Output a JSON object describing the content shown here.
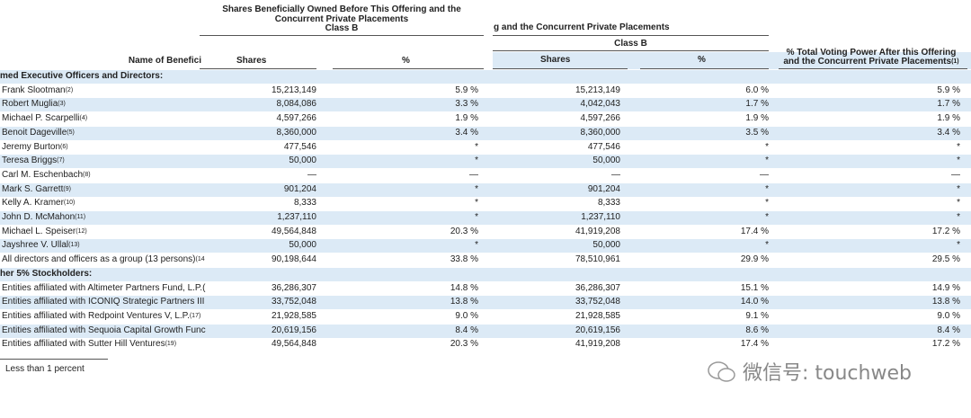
{
  "header": {
    "group1": [
      "Shares Beneficially Owned Before This Offering and the",
      "Concurrent Private Placements",
      "Class B"
    ],
    "group2": [
      "g and the Concurrent Private Placements",
      "Class B"
    ],
    "voting": {
      "lines": [
        "% Total Voting Power After this Offering",
        "and the Concurrent Private Placements"
      ],
      "note": "(1)"
    },
    "columns": [
      "Name of Benefici",
      "Shares",
      "%",
      "Shares",
      "%"
    ]
  },
  "table": {
    "sections": [
      {
        "title": "med Executive Officers and Directors:",
        "rows": [
          {
            "name": "Frank Slootman",
            "note": "(2)",
            "cells": [
              "15,213,149",
              "5.9 %",
              "15,213,149",
              "6.0 %",
              "5.9 %"
            ]
          },
          {
            "name": "Robert Muglia",
            "note": "(3)",
            "cells": [
              "8,084,086",
              "3.3 %",
              "4,042,043",
              "1.7 %",
              "1.7 %"
            ]
          },
          {
            "name": "Michael P. Scarpelli",
            "note": "(4)",
            "cells": [
              "4,597,266",
              "1.9 %",
              "4,597,266",
              "1.9 %",
              "1.9 %"
            ]
          },
          {
            "name": "Benoit Dageville",
            "note": "(5)",
            "cells": [
              "8,360,000",
              "3.4 %",
              "8,360,000",
              "3.5 %",
              "3.4 %"
            ]
          },
          {
            "name": "Jeremy Burton",
            "note": "(6)",
            "cells": [
              "477,546",
              "*",
              "477,546",
              "*",
              "*"
            ]
          },
          {
            "name": "Teresa Briggs",
            "note": "(7)",
            "cells": [
              "50,000",
              "*",
              "50,000",
              "*",
              "*"
            ]
          },
          {
            "name": "Carl M. Eschenbach",
            "note": "(8)",
            "cells": [
              "—",
              "—",
              "—",
              "—",
              "—"
            ]
          },
          {
            "name": "Mark S. Garrett",
            "note": "(9)",
            "cells": [
              "901,204",
              "*",
              "901,204",
              "*",
              "*"
            ]
          },
          {
            "name": "Kelly A. Kramer",
            "note": "(10)",
            "cells": [
              "8,333",
              "*",
              "8,333",
              "*",
              "*"
            ]
          },
          {
            "name": "John D. McMahon",
            "note": "(11)",
            "cells": [
              "1,237,110",
              "*",
              "1,237,110",
              "*",
              "*"
            ]
          },
          {
            "name": "Michael L. Speiser",
            "note": "(12)",
            "cells": [
              "49,564,848",
              "20.3 %",
              "41,919,208",
              "17.4 %",
              "17.2 %"
            ]
          },
          {
            "name": "Jayshree V. Ullal",
            "note": "(13)",
            "cells": [
              "50,000",
              "*",
              "50,000",
              "*",
              "*"
            ]
          },
          {
            "name": "All directors and officers as a group (13 persons)",
            "note": "(14",
            "cells": [
              "90,198,644",
              "33.8 %",
              "78,510,961",
              "29.9 %",
              "29.5 %"
            ]
          }
        ]
      },
      {
        "title": "her 5% Stockholders:",
        "rows": [
          {
            "name": "Entities affiliated with Altimeter Partners Fund, L.P.(",
            "cells": [
              "36,286,307",
              "14.8 %",
              "36,286,307",
              "15.1 %",
              "14.9 %"
            ]
          },
          {
            "name": "Entities affiliated with ICONIQ Strategic Partners III",
            "cells": [
              "33,752,048",
              "13.8 %",
              "33,752,048",
              "14.0 %",
              "13.8 %"
            ]
          },
          {
            "name": "Entities affiliated with Redpoint Ventures V, L.P.",
            "note": "(17)",
            "cells": [
              "21,928,585",
              "9.0 %",
              "21,928,585",
              "9.1 %",
              "9.0 %"
            ]
          },
          {
            "name": "Entities affiliated with Sequoia Capital Growth Func",
            "cells": [
              "20,619,156",
              "8.4 %",
              "20,619,156",
              "8.6 %",
              "8.4 %"
            ]
          },
          {
            "name": "Entities affiliated with Sutter Hill Ventures",
            "note": "(19)",
            "cells": [
              "49,564,848",
              "20.3 %",
              "41,919,208",
              "17.4 %",
              "17.2 %"
            ]
          }
        ]
      }
    ]
  },
  "footer": "Less than 1 percent",
  "watermark": "微信号: touchweb"
}
